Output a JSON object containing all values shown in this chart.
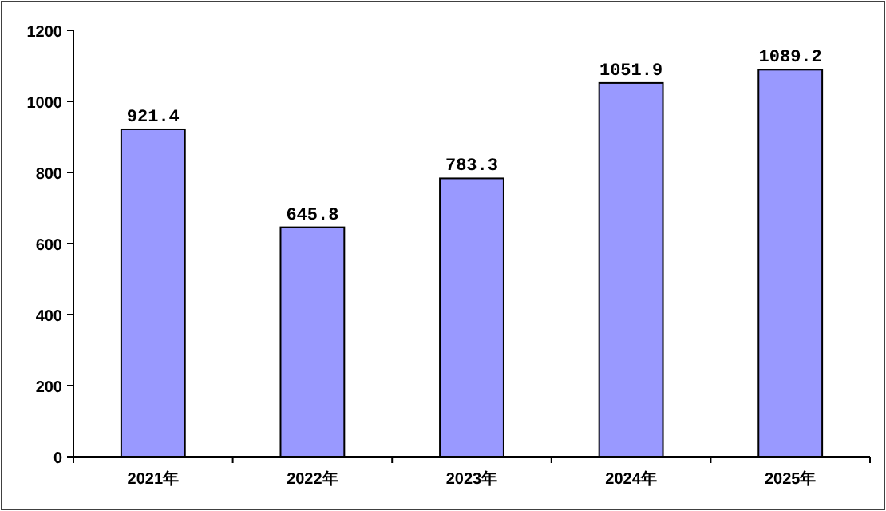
{
  "chart_data": {
    "type": "bar",
    "categories": [
      "2021年",
      "2022年",
      "2023年",
      "2024年",
      "2025年"
    ],
    "values": [
      921.4,
      645.8,
      783.3,
      1051.9,
      1089.2
    ],
    "color": "#9999ff",
    "ylim": [
      0,
      1200
    ],
    "yticks": [
      0,
      200,
      400,
      600,
      800,
      1000,
      1200
    ],
    "data_labels": true
  }
}
